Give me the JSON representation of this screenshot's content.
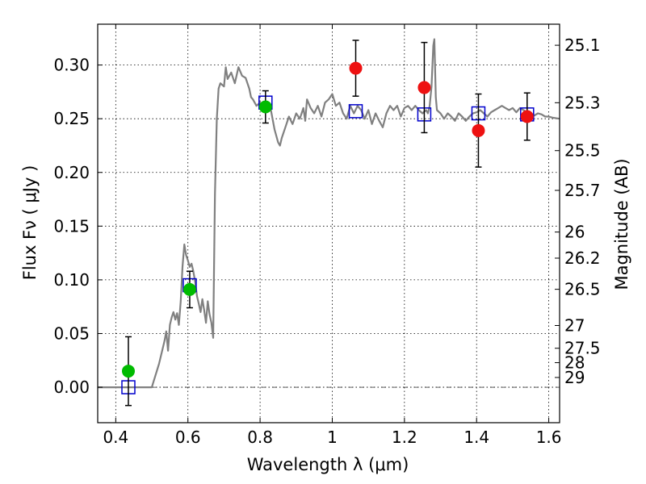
{
  "chart_data": {
    "type": "scatter",
    "xlabel": "Wavelength  λ (μm)",
    "ylabel": "Flux  Fν  ( μJy )",
    "y2label": "Magnitude (AB)",
    "xlim": [
      0.35,
      1.63
    ],
    "ylim": [
      -0.033,
      0.338
    ],
    "grid": true,
    "x_ticks": [
      0.4,
      0.6,
      0.8,
      1.0,
      1.2,
      1.4,
      1.6
    ],
    "x_tick_labels": [
      "0.4",
      "0.6",
      "0.8",
      "1",
      "1.2",
      "1.4",
      "1.6"
    ],
    "y_ticks": [
      0.0,
      0.05,
      0.1,
      0.15,
      0.2,
      0.25,
      0.3
    ],
    "y_tick_labels": [
      "0.00",
      "0.05",
      "0.10",
      "0.15",
      "0.20",
      "0.25",
      "0.30"
    ],
    "y2_ticks": [
      {
        "label": "25.1",
        "flux": 0.3184
      },
      {
        "label": "25.3",
        "flux": 0.2649
      },
      {
        "label": "25.5",
        "flux": 0.2203
      },
      {
        "label": "25.7",
        "flux": 0.1833
      },
      {
        "label": "26",
        "flux": 0.1445
      },
      {
        "label": "26.2",
        "flux": 0.1202
      },
      {
        "label": "26.5",
        "flux": 0.0912
      },
      {
        "label": "27",
        "flux": 0.0575
      },
      {
        "label": "27.5",
        "flux": 0.0363
      },
      {
        "label": "28",
        "flux": 0.0229
      },
      {
        "label": "29",
        "flux": 0.0091
      }
    ],
    "series": [
      {
        "kind": "line",
        "color": "#808080",
        "points": [
          [
            0.35,
            0.0
          ],
          [
            0.49,
            0.0
          ],
          [
            0.5,
            0.0
          ],
          [
            0.52,
            0.022
          ],
          [
            0.535,
            0.043
          ],
          [
            0.54,
            0.052
          ],
          [
            0.545,
            0.034
          ],
          [
            0.55,
            0.058
          ],
          [
            0.555,
            0.065
          ],
          [
            0.56,
            0.07
          ],
          [
            0.565,
            0.063
          ],
          [
            0.57,
            0.069
          ],
          [
            0.575,
            0.058
          ],
          [
            0.58,
            0.08
          ],
          [
            0.585,
            0.112
          ],
          [
            0.59,
            0.133
          ],
          [
            0.595,
            0.123
          ],
          [
            0.6,
            0.118
          ],
          [
            0.605,
            0.112
          ],
          [
            0.61,
            0.115
          ],
          [
            0.615,
            0.108
          ],
          [
            0.62,
            0.098
          ],
          [
            0.625,
            0.085
          ],
          [
            0.63,
            0.078
          ],
          [
            0.635,
            0.07
          ],
          [
            0.64,
            0.082
          ],
          [
            0.645,
            0.072
          ],
          [
            0.65,
            0.06
          ],
          [
            0.655,
            0.08
          ],
          [
            0.66,
            0.068
          ],
          [
            0.665,
            0.06
          ],
          [
            0.67,
            0.046
          ],
          [
            0.675,
            0.18
          ],
          [
            0.68,
            0.25
          ],
          [
            0.685,
            0.278
          ],
          [
            0.69,
            0.283
          ],
          [
            0.7,
            0.28
          ],
          [
            0.705,
            0.298
          ],
          [
            0.71,
            0.287
          ],
          [
            0.72,
            0.293
          ],
          [
            0.73,
            0.283
          ],
          [
            0.74,
            0.298
          ],
          [
            0.75,
            0.29
          ],
          [
            0.76,
            0.288
          ],
          [
            0.77,
            0.278
          ],
          [
            0.775,
            0.27
          ],
          [
            0.78,
            0.268
          ],
          [
            0.79,
            0.262
          ],
          [
            0.8,
            0.265
          ],
          [
            0.81,
            0.262
          ],
          [
            0.82,
            0.265
          ],
          [
            0.83,
            0.258
          ],
          [
            0.84,
            0.24
          ],
          [
            0.85,
            0.228
          ],
          [
            0.855,
            0.225
          ],
          [
            0.86,
            0.232
          ],
          [
            0.87,
            0.242
          ],
          [
            0.88,
            0.252
          ],
          [
            0.89,
            0.245
          ],
          [
            0.9,
            0.255
          ],
          [
            0.91,
            0.25
          ],
          [
            0.92,
            0.26
          ],
          [
            0.925,
            0.248
          ],
          [
            0.93,
            0.268
          ],
          [
            0.94,
            0.26
          ],
          [
            0.95,
            0.255
          ],
          [
            0.96,
            0.262
          ],
          [
            0.97,
            0.252
          ],
          [
            0.98,
            0.265
          ],
          [
            0.99,
            0.268
          ],
          [
            1.0,
            0.273
          ],
          [
            1.01,
            0.262
          ],
          [
            1.02,
            0.265
          ],
          [
            1.03,
            0.255
          ],
          [
            1.04,
            0.25
          ],
          [
            1.05,
            0.262
          ],
          [
            1.06,
            0.255
          ],
          [
            1.07,
            0.262
          ],
          [
            1.08,
            0.258
          ],
          [
            1.09,
            0.25
          ],
          [
            1.1,
            0.258
          ],
          [
            1.11,
            0.245
          ],
          [
            1.12,
            0.255
          ],
          [
            1.13,
            0.248
          ],
          [
            1.14,
            0.242
          ],
          [
            1.15,
            0.255
          ],
          [
            1.16,
            0.262
          ],
          [
            1.17,
            0.258
          ],
          [
            1.18,
            0.262
          ],
          [
            1.19,
            0.252
          ],
          [
            1.2,
            0.26
          ],
          [
            1.21,
            0.262
          ],
          [
            1.22,
            0.258
          ],
          [
            1.23,
            0.262
          ],
          [
            1.24,
            0.258
          ],
          [
            1.25,
            0.255
          ],
          [
            1.26,
            0.258
          ],
          [
            1.265,
            0.255
          ],
          [
            1.27,
            0.262
          ],
          [
            1.275,
            0.28
          ],
          [
            1.28,
            0.318
          ],
          [
            1.283,
            0.324
          ],
          [
            1.287,
            0.27
          ],
          [
            1.29,
            0.258
          ],
          [
            1.3,
            0.255
          ],
          [
            1.31,
            0.25
          ],
          [
            1.32,
            0.255
          ],
          [
            1.33,
            0.252
          ],
          [
            1.34,
            0.248
          ],
          [
            1.35,
            0.255
          ],
          [
            1.36,
            0.252
          ],
          [
            1.37,
            0.248
          ],
          [
            1.38,
            0.252
          ],
          [
            1.39,
            0.255
          ],
          [
            1.4,
            0.256
          ],
          [
            1.41,
            0.258
          ],
          [
            1.42,
            0.255
          ],
          [
            1.43,
            0.252
          ],
          [
            1.44,
            0.256
          ],
          [
            1.45,
            0.258
          ],
          [
            1.46,
            0.26
          ],
          [
            1.47,
            0.262
          ],
          [
            1.48,
            0.26
          ],
          [
            1.49,
            0.258
          ],
          [
            1.5,
            0.26
          ],
          [
            1.51,
            0.256
          ],
          [
            1.52,
            0.26
          ],
          [
            1.53,
            0.258
          ],
          [
            1.54,
            0.256
          ],
          [
            1.55,
            0.255
          ],
          [
            1.56,
            0.253
          ],
          [
            1.57,
            0.255
          ],
          [
            1.58,
            0.254
          ],
          [
            1.59,
            0.252
          ],
          [
            1.6,
            0.252
          ],
          [
            1.61,
            0.251
          ],
          [
            1.63,
            0.25
          ]
        ]
      },
      {
        "kind": "open-square",
        "color": "#0000cc",
        "points": [
          [
            0.435,
            0.0
          ],
          [
            0.605,
            0.095
          ],
          [
            0.815,
            0.265
          ],
          [
            1.065,
            0.257
          ],
          [
            1.255,
            0.254
          ],
          [
            1.405,
            0.255
          ],
          [
            1.54,
            0.254
          ]
        ]
      },
      {
        "kind": "filled-circle",
        "color": "#00bb00",
        "points": [
          {
            "x": 0.435,
            "y": 0.015,
            "err": 0.032
          },
          {
            "x": 0.605,
            "y": 0.091,
            "err": 0.017
          },
          {
            "x": 0.815,
            "y": 0.261,
            "err": 0.015
          }
        ]
      },
      {
        "kind": "filled-circle",
        "color": "#ee1111",
        "points": [
          {
            "x": 1.065,
            "y": 0.297,
            "err": 0.026
          },
          {
            "x": 1.255,
            "y": 0.279,
            "err": 0.042
          },
          {
            "x": 1.405,
            "y": 0.239,
            "err": 0.034
          },
          {
            "x": 1.54,
            "y": 0.252,
            "err": 0.022
          }
        ]
      }
    ]
  }
}
